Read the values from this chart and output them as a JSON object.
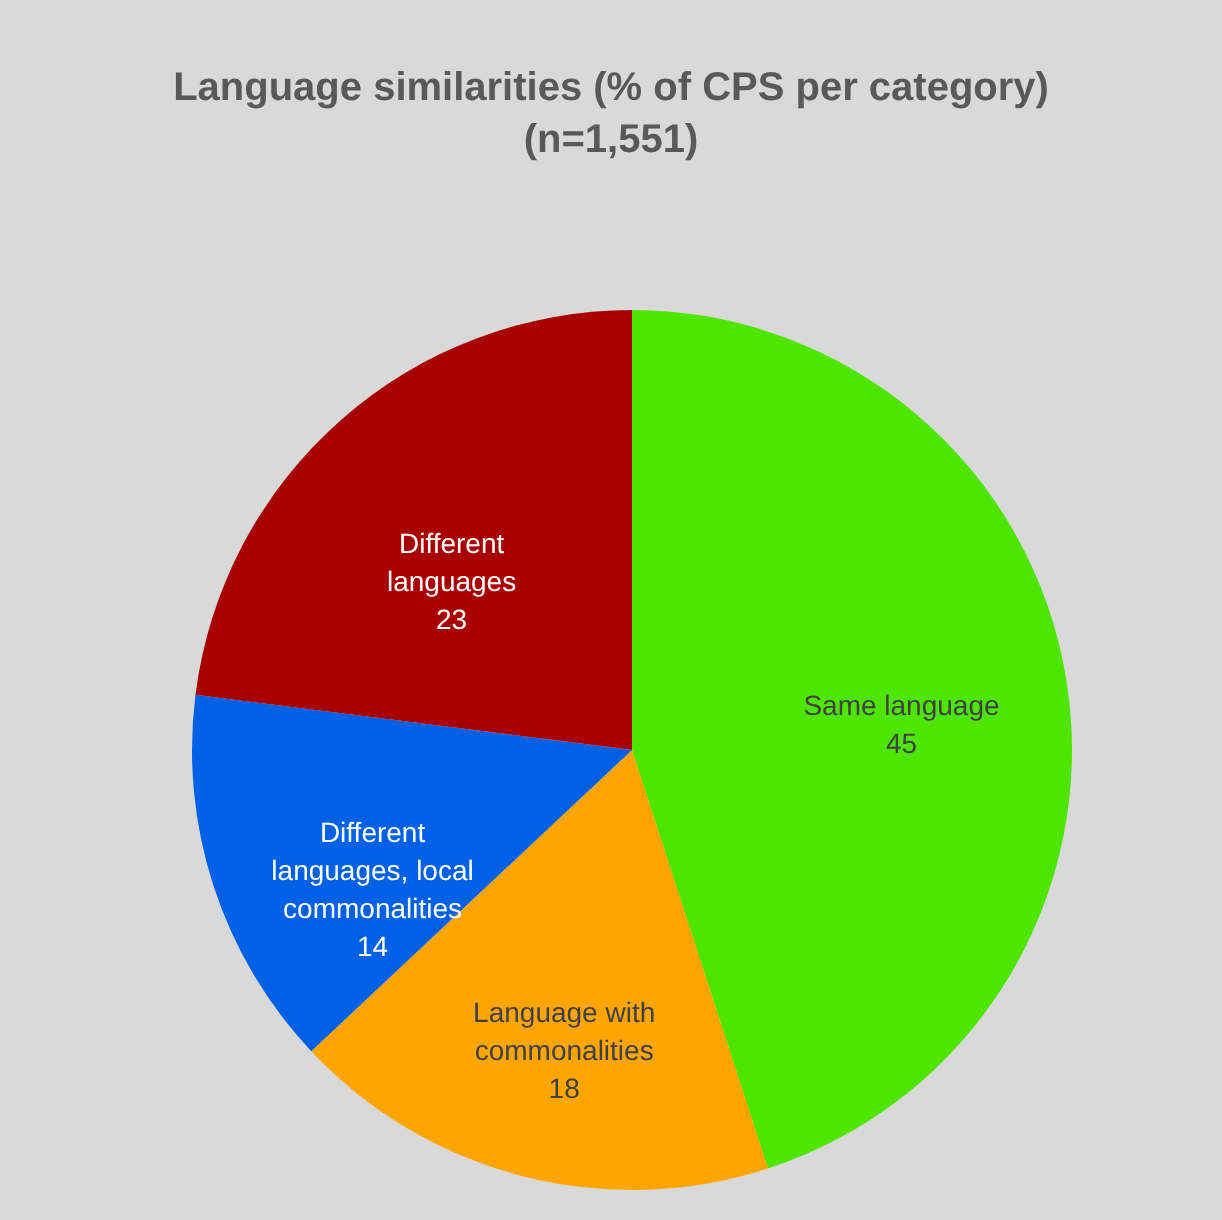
{
  "chart_data": {
    "type": "pie",
    "title": "Language similarities (% of CPS per category)\n(n=1,551)",
    "categories": [
      "Same language",
      "Language with commonalities",
      "Different languages, local commonalities",
      "Different languages"
    ],
    "values": [
      45,
      18,
      14,
      23
    ],
    "colors": [
      "#4ee600",
      "#ffa500",
      "#0060e6",
      "#a80000"
    ],
    "data_labels": true,
    "legend": false
  }
}
